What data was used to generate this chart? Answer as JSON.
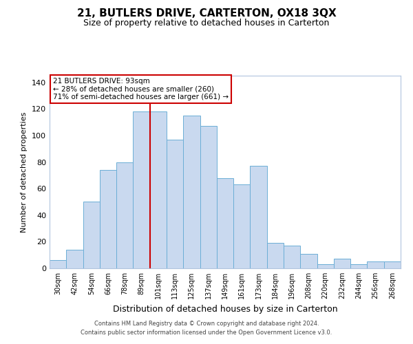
{
  "title": "21, BUTLERS DRIVE, CARTERTON, OX18 3QX",
  "subtitle": "Size of property relative to detached houses in Carterton",
  "xlabel": "Distribution of detached houses by size in Carterton",
  "ylabel": "Number of detached properties",
  "bar_labels": [
    "30sqm",
    "42sqm",
    "54sqm",
    "66sqm",
    "78sqm",
    "89sqm",
    "101sqm",
    "113sqm",
    "125sqm",
    "137sqm",
    "149sqm",
    "161sqm",
    "173sqm",
    "184sqm",
    "196sqm",
    "208sqm",
    "220sqm",
    "232sqm",
    "244sqm",
    "256sqm",
    "268sqm"
  ],
  "bar_heights": [
    6,
    14,
    50,
    74,
    80,
    118,
    118,
    97,
    115,
    107,
    68,
    63,
    77,
    19,
    17,
    11,
    3,
    7,
    3,
    5,
    5
  ],
  "bar_color": "#c9d9ef",
  "bar_edge_color": "#6baed6",
  "vline_x": 5.5,
  "vline_color": "#cc0000",
  "annotation_title": "21 BUTLERS DRIVE: 93sqm",
  "annotation_line1": "← 28% of detached houses are smaller (260)",
  "annotation_line2": "71% of semi-detached houses are larger (661) →",
  "annotation_box_color": "#ffffff",
  "annotation_box_edge": "#cc0000",
  "ylim": [
    0,
    145
  ],
  "yticks": [
    0,
    20,
    40,
    60,
    80,
    100,
    120,
    140
  ],
  "footer1": "Contains HM Land Registry data © Crown copyright and database right 2024.",
  "footer2": "Contains public sector information licensed under the Open Government Licence v3.0."
}
